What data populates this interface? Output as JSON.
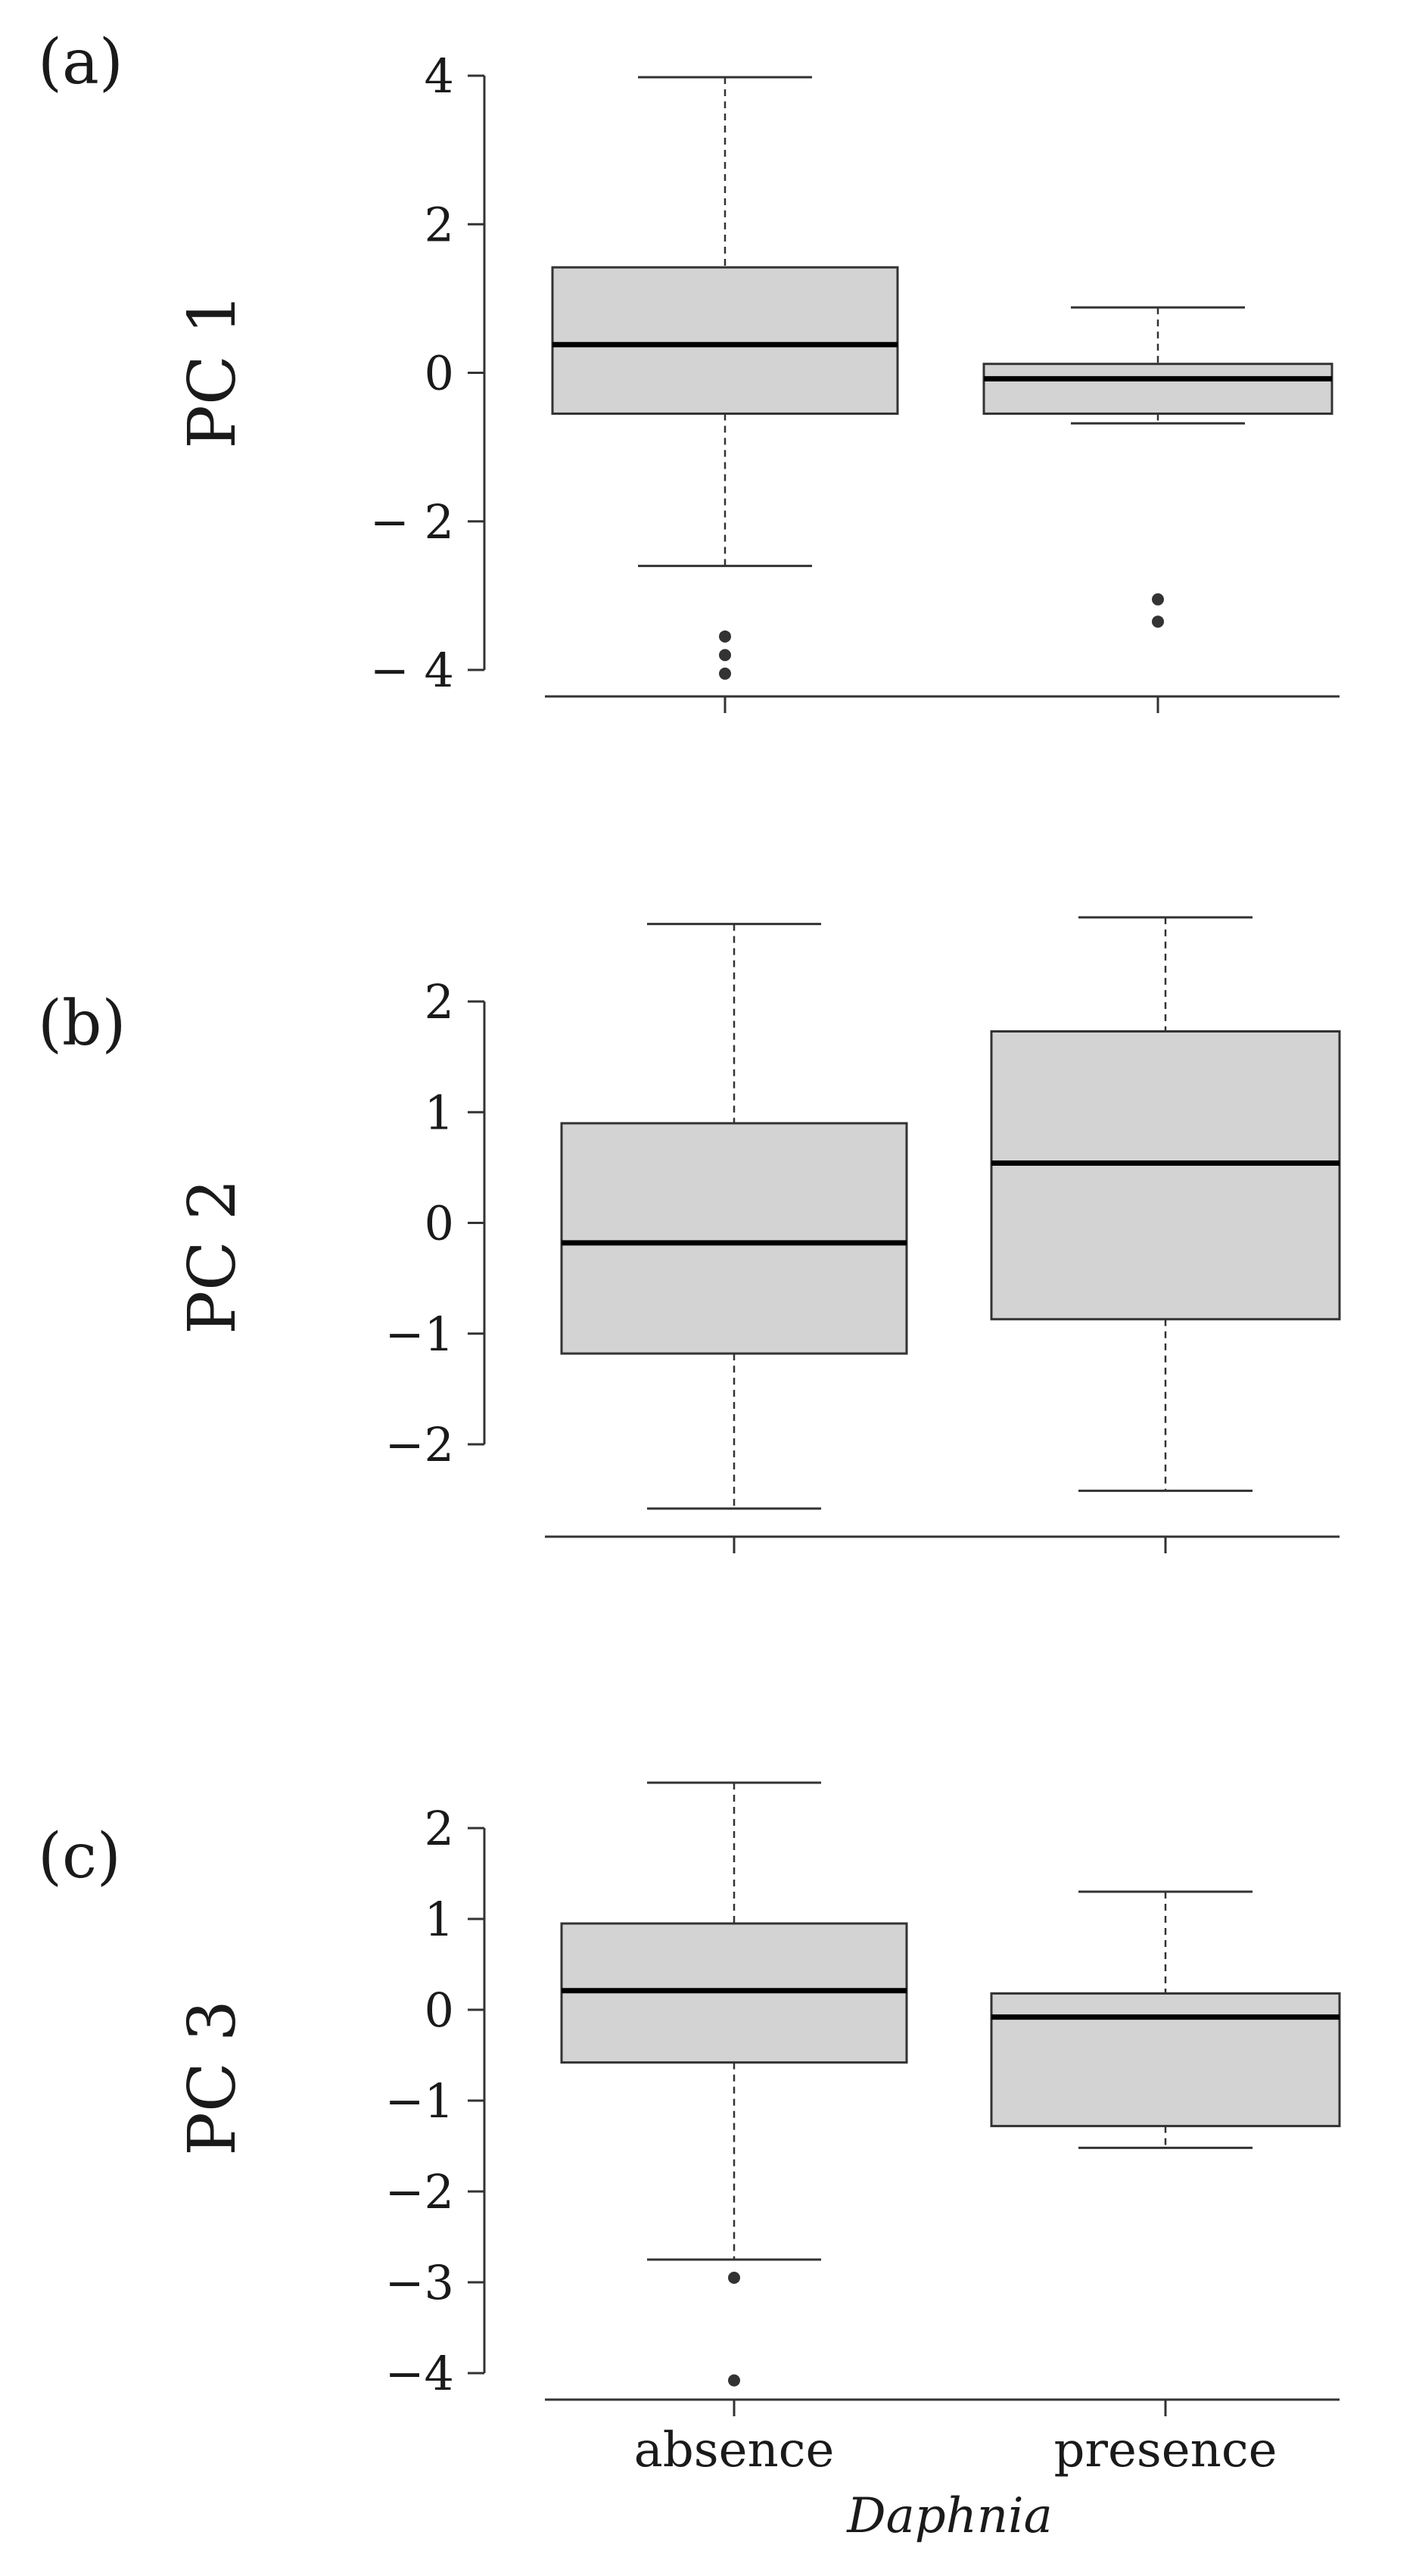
{
  "chart_data": [
    {
      "type": "box",
      "panel_label": "(a)",
      "ylabel": "PC 1",
      "categories": [
        "absence",
        "presence"
      ],
      "ylim": [
        -4.3,
        4.0
      ],
      "yticks": [
        4,
        2,
        0,
        -2,
        -4
      ],
      "ytick_labels": [
        "4",
        "2",
        "0",
        "− 2",
        "− 4"
      ],
      "show_x_labels": false,
      "series": [
        {
          "category": "absence",
          "min": -2.6,
          "q1": -0.55,
          "median": 0.38,
          "q3": 1.42,
          "max": 3.98,
          "outliers": [
            -3.55,
            -3.8,
            -4.05
          ]
        },
        {
          "category": "presence",
          "min": -0.68,
          "q1": -0.55,
          "median": -0.08,
          "q3": 0.12,
          "max": 0.88,
          "outliers": [
            -3.05,
            -3.35
          ]
        }
      ],
      "box_fill": "#d3d3d3",
      "grid": false
    },
    {
      "type": "box",
      "panel_label": "(b)",
      "ylabel": "PC 2",
      "categories": [
        "absence",
        "presence"
      ],
      "ylim": [
        -2.65,
        2.8
      ],
      "yticks": [
        2,
        1,
        0,
        -1,
        -2
      ],
      "ytick_labels": [
        "2",
        "1",
        "0",
        "−1",
        "−2"
      ],
      "show_x_labels": false,
      "series": [
        {
          "category": "absence",
          "min": -2.58,
          "q1": -1.18,
          "median": -0.18,
          "q3": 0.9,
          "max": 2.7,
          "outliers": []
        },
        {
          "category": "presence",
          "min": -2.42,
          "q1": -0.87,
          "median": 0.54,
          "q3": 1.73,
          "max": 2.76,
          "outliers": []
        }
      ],
      "box_fill": "#d3d3d3",
      "grid": false
    },
    {
      "type": "box",
      "panel_label": "(c)",
      "ylabel": "PC 3",
      "categories": [
        "absence",
        "presence"
      ],
      "ylim": [
        -4.25,
        2.5
      ],
      "yticks": [
        2,
        1,
        0,
        -1,
        -2,
        -3,
        -4
      ],
      "ytick_labels": [
        "2",
        "1",
        "0",
        "−1",
        "−2",
        "−3",
        "−4"
      ],
      "show_x_labels": true,
      "xlabel": "Daphnia",
      "series": [
        {
          "category": "absence",
          "min": -2.75,
          "q1": -0.58,
          "median": 0.21,
          "q3": 0.95,
          "max": 2.5,
          "outliers": [
            -2.95,
            -4.08
          ]
        },
        {
          "category": "presence",
          "min": -1.52,
          "q1": -1.28,
          "median": -0.08,
          "q3": 0.18,
          "max": 1.3,
          "outliers": []
        }
      ],
      "box_fill": "#d3d3d3",
      "grid": false
    }
  ]
}
